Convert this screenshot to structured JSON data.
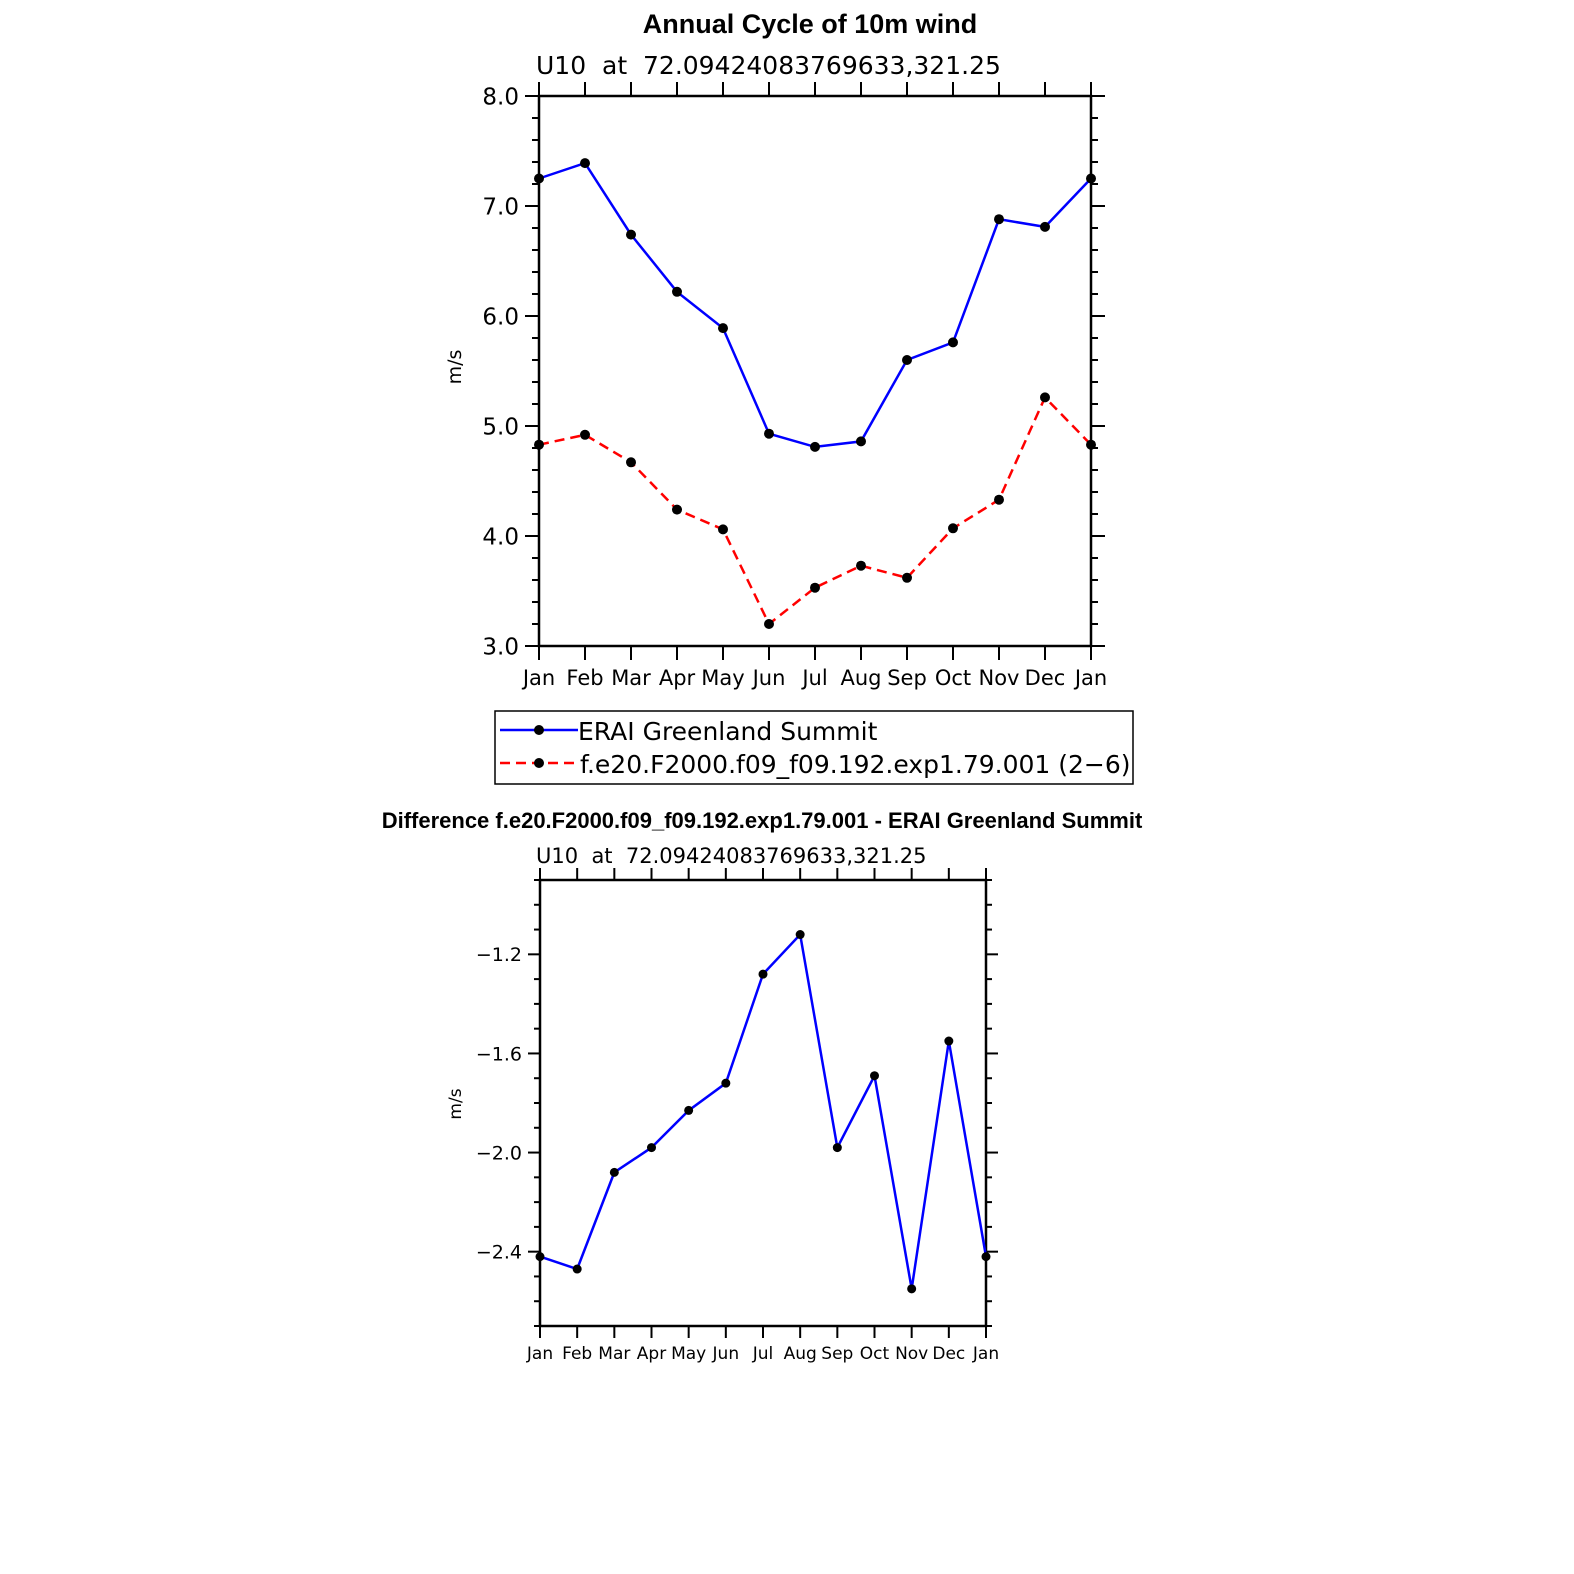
{
  "chart_data": [
    {
      "type": "line",
      "title": "Annual Cycle of 10m wind",
      "subtitle": "U10  at  72.09424083769633,321.25",
      "xlabel": "",
      "ylabel": "m/s",
      "categories": [
        "Jan",
        "Feb",
        "Mar",
        "Apr",
        "May",
        "Jun",
        "Jul",
        "Aug",
        "Sep",
        "Oct",
        "Nov",
        "Dec",
        "Jan"
      ],
      "ylim": [
        3.0,
        8.0
      ],
      "yticks": [
        "3.0",
        "4.0",
        "5.0",
        "6.0",
        "7.0",
        "8.0"
      ],
      "grid": false,
      "legend": "bottom",
      "series": [
        {
          "name": "ERAI Greenland Summit",
          "color": "#0000ff",
          "dash": "solid",
          "values": [
            7.25,
            7.39,
            6.74,
            6.22,
            5.89,
            4.93,
            4.81,
            4.86,
            5.6,
            5.76,
            6.88,
            6.81,
            7.25
          ]
        },
        {
          "name": "f.e20.F2000.f09_f09.192.exp1.79.001 (2−6)",
          "color": "#ff0000",
          "dash": "dashed",
          "values": [
            4.83,
            4.92,
            4.67,
            4.24,
            4.06,
            3.2,
            3.53,
            3.73,
            3.62,
            4.07,
            4.33,
            5.26,
            4.83
          ]
        }
      ]
    },
    {
      "type": "line",
      "title": "Difference f.e20.F2000.f09_f09.192.exp1.79.001 - ERAI Greenland Summit",
      "subtitle": "U10  at  72.09424083769633,321.25",
      "xlabel": "",
      "ylabel": "m/s",
      "categories": [
        "Jan",
        "Feb",
        "Mar",
        "Apr",
        "May",
        "Jun",
        "Jul",
        "Aug",
        "Sep",
        "Oct",
        "Nov",
        "Dec",
        "Jan"
      ],
      "ylim": [
        -2.7,
        -0.9
      ],
      "yticks": [
        "−2.4",
        "−2.0",
        "−1.6",
        "−1.2"
      ],
      "grid": false,
      "series": [
        {
          "color": "#0000ff",
          "dash": "solid",
          "values": [
            -2.42,
            -2.47,
            -2.08,
            -1.98,
            -1.83,
            -1.72,
            -1.28,
            -1.12,
            -1.98,
            -1.69,
            -2.55,
            -1.55,
            -2.42
          ]
        }
      ]
    }
  ]
}
